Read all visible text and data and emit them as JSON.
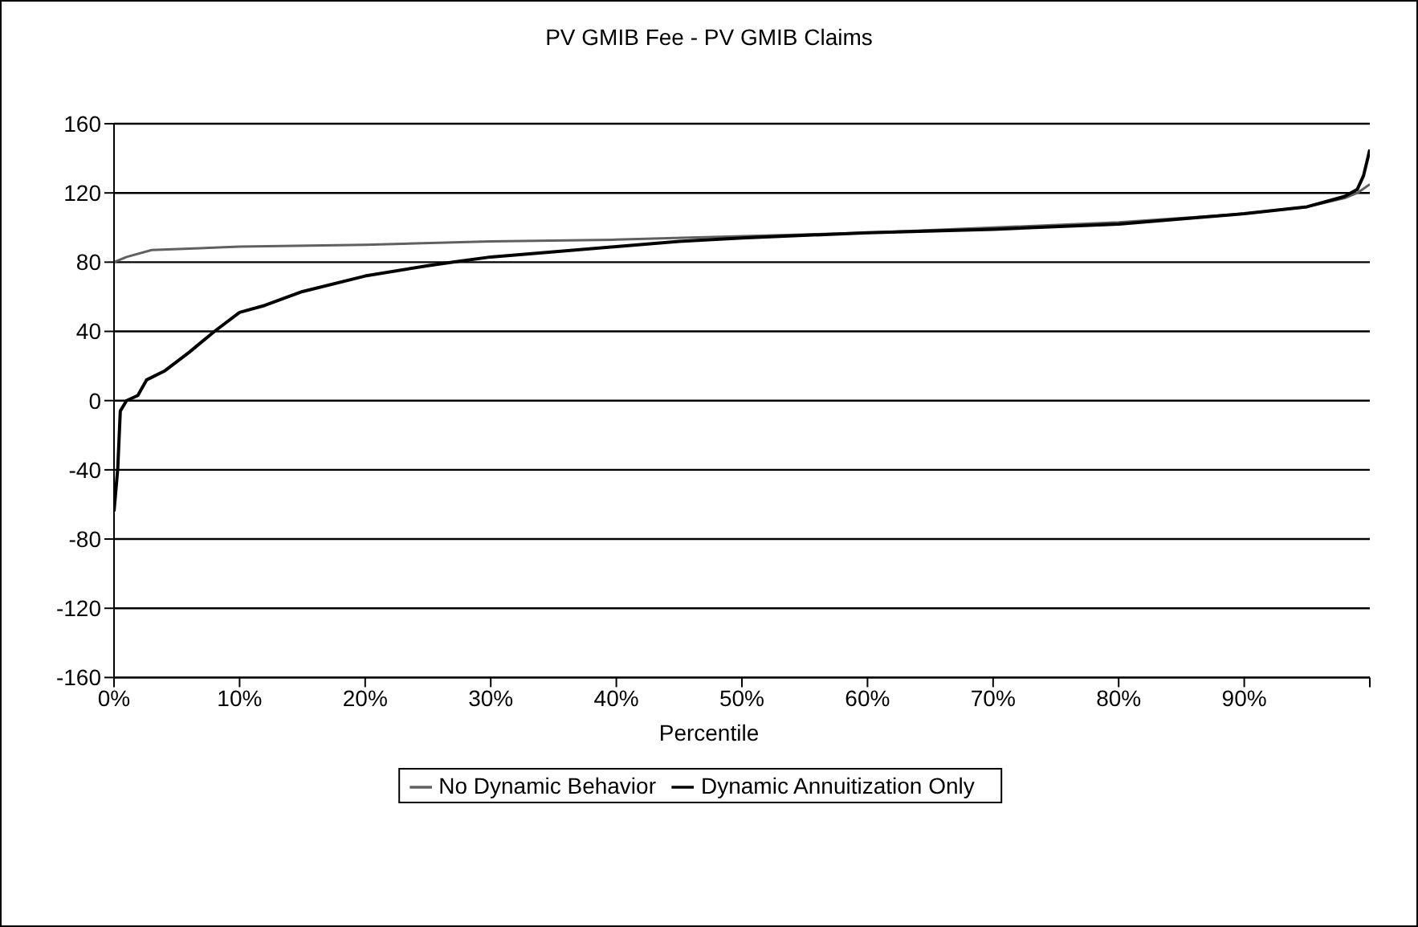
{
  "chart_data": {
    "type": "line",
    "title": "PV GMIB Fee - PV GMIB Claims",
    "xlabel": "Percentile",
    "xlim": [
      0,
      100
    ],
    "xticks": [
      {
        "value": 0,
        "label": "0%"
      },
      {
        "value": 10,
        "label": "10%"
      },
      {
        "value": 20,
        "label": "20%"
      },
      {
        "value": 30,
        "label": "30%"
      },
      {
        "value": 40,
        "label": "40%"
      },
      {
        "value": 50,
        "label": "50%"
      },
      {
        "value": 60,
        "label": "60%"
      },
      {
        "value": 70,
        "label": "70%"
      },
      {
        "value": 80,
        "label": "80%"
      },
      {
        "value": 90,
        "label": "90%"
      },
      {
        "value": 100,
        "label": null
      }
    ],
    "ylim": [
      -160,
      160
    ],
    "yticks": [
      -160,
      -120,
      -80,
      -40,
      0,
      40,
      80,
      120,
      160
    ],
    "grid": "y",
    "legend": "bottom",
    "marker": "none",
    "line_style": "solid",
    "series": [
      {
        "name": "No Dynamic Behavior",
        "color": "#606060",
        "x": [
          0,
          1,
          3,
          10,
          20,
          30,
          40,
          50,
          60,
          70,
          80,
          90,
          95,
          98,
          99,
          100
        ],
        "values": [
          80,
          83,
          87,
          89,
          90,
          92,
          93,
          95,
          97,
          100,
          103,
          108,
          112,
          117,
          120,
          125
        ]
      },
      {
        "name": "Dynamic Annuitization Only",
        "color": "#000000",
        "x": [
          0,
          0.3,
          0.5,
          1,
          1.9,
          2.6,
          4,
          6,
          8,
          10,
          12,
          15,
          20,
          25,
          27,
          30,
          35,
          40,
          45,
          50,
          60,
          70,
          80,
          90,
          95,
          98,
          99,
          99.5,
          100
        ],
        "values": [
          -64,
          -39,
          -6,
          0,
          3,
          12,
          17,
          28,
          40,
          51,
          55,
          63,
          72,
          78,
          80,
          83,
          86,
          89,
          92,
          94,
          97,
          99,
          102,
          108,
          112,
          118,
          122,
          130,
          145
        ]
      }
    ]
  }
}
